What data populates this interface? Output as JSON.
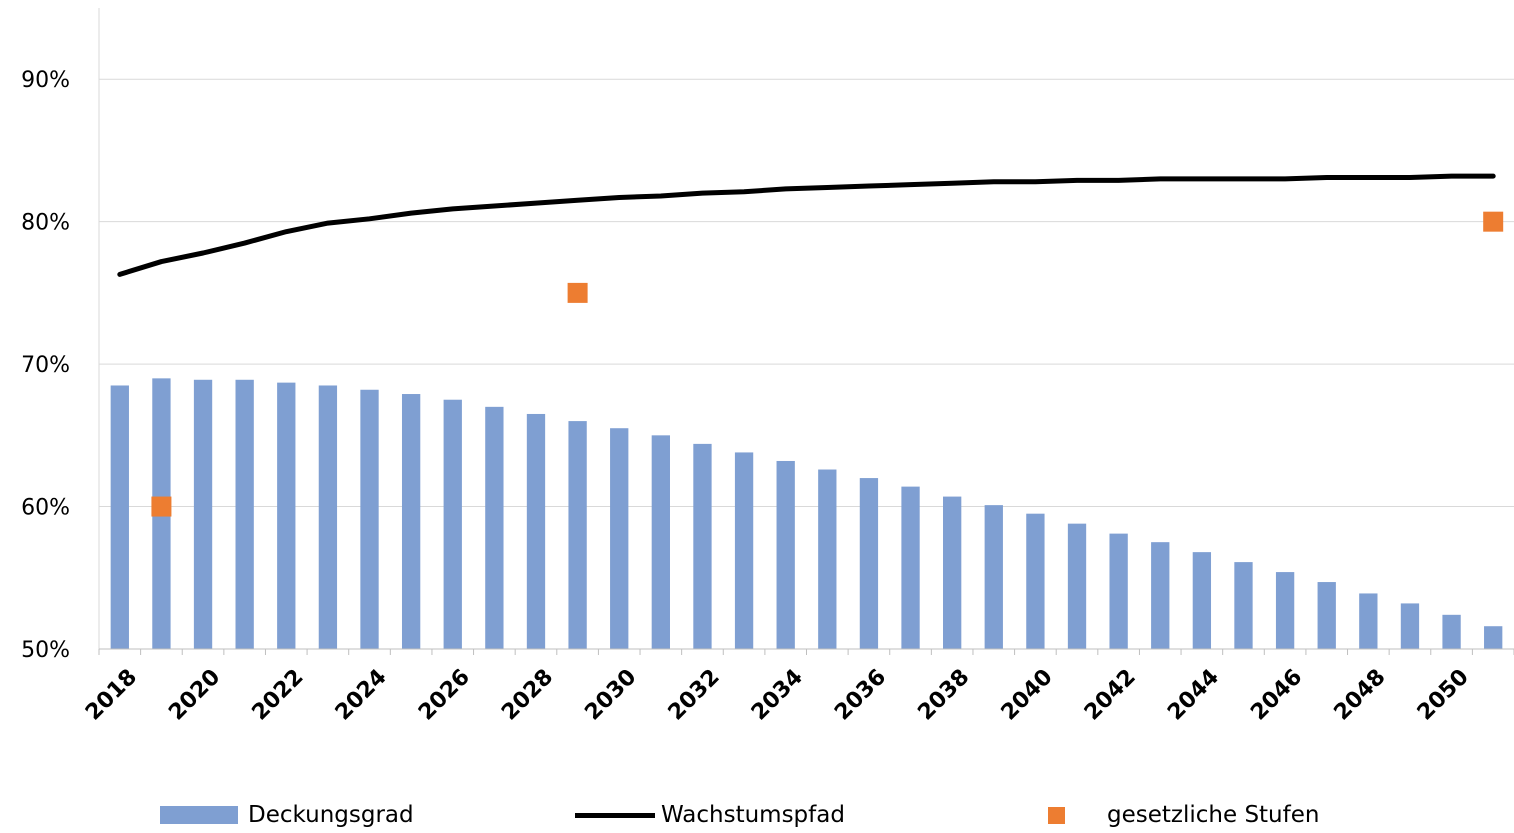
{
  "chart_data": {
    "type": "bar",
    "title": "",
    "xlabel": "",
    "ylabel": "",
    "ylim": [
      0.5,
      0.95
    ],
    "yticks": [
      0.5,
      0.6,
      0.7,
      0.8,
      0.9
    ],
    "ytick_labels": [
      "50%",
      "60%",
      "70%",
      "80%",
      "90%"
    ],
    "grid": true,
    "legend_position": "bottom",
    "x": [
      2018,
      2019,
      2020,
      2021,
      2022,
      2023,
      2024,
      2025,
      2026,
      2027,
      2028,
      2029,
      2030,
      2031,
      2032,
      2033,
      2034,
      2035,
      2036,
      2037,
      2038,
      2039,
      2040,
      2041,
      2042,
      2043,
      2044,
      2045,
      2046,
      2047,
      2048,
      2049,
      2050,
      2051
    ],
    "xtick_labels": [
      "2018",
      "2020",
      "2022",
      "2024",
      "2026",
      "2028",
      "2030",
      "2032",
      "2034",
      "2036",
      "2038",
      "2040",
      "2042",
      "2044",
      "2046",
      "2048",
      "2050"
    ],
    "series": [
      {
        "name": "Deckungsgrad",
        "type": "bar",
        "color": "#7f9fd2",
        "values": [
          0.685,
          0.69,
          0.689,
          0.689,
          0.687,
          0.685,
          0.682,
          0.679,
          0.675,
          0.67,
          0.665,
          0.66,
          0.655,
          0.65,
          0.644,
          0.638,
          0.632,
          0.626,
          0.62,
          0.614,
          0.607,
          0.601,
          0.595,
          0.588,
          0.581,
          0.575,
          0.568,
          0.561,
          0.554,
          0.547,
          0.539,
          0.532,
          0.524,
          0.516
        ]
      },
      {
        "name": "Wachstumspfad",
        "type": "line",
        "color": "#000000",
        "values": [
          0.763,
          0.772,
          0.778,
          0.785,
          0.793,
          0.799,
          0.802,
          0.806,
          0.809,
          0.811,
          0.813,
          0.815,
          0.817,
          0.818,
          0.82,
          0.821,
          0.823,
          0.824,
          0.825,
          0.826,
          0.827,
          0.828,
          0.828,
          0.829,
          0.829,
          0.83,
          0.83,
          0.83,
          0.83,
          0.831,
          0.831,
          0.831,
          0.832,
          0.832
        ]
      },
      {
        "name": "gesetzliche Stufen",
        "type": "scatter",
        "color": "#ed7d31",
        "points": [
          {
            "x": 2019,
            "y": 0.6
          },
          {
            "x": 2029,
            "y": 0.75
          },
          {
            "x": 2051,
            "y": 0.8
          }
        ]
      }
    ]
  }
}
